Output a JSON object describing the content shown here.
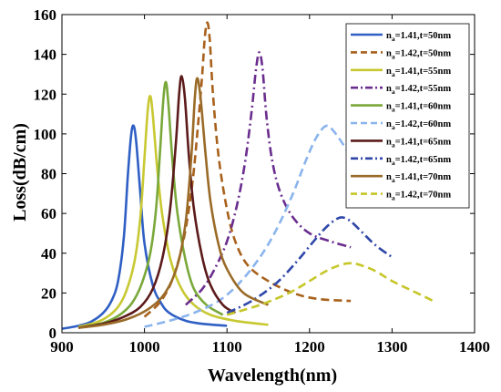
{
  "chart_data": {
    "type": "line",
    "title": "",
    "xlabel": "Wavelength(nm)",
    "ylabel": "Loss(dB/cm)",
    "xlim": [
      900,
      1400
    ],
    "ylim": [
      0,
      160
    ],
    "xticks": [
      900,
      1000,
      1100,
      1200,
      1300,
      1400
    ],
    "yticks": [
      0,
      20,
      40,
      60,
      80,
      100,
      120,
      140,
      160
    ],
    "grid": false,
    "legend_position": "top-right",
    "series": [
      {
        "name": "n_a=1.41,t=50nm",
        "label_main": "n",
        "label_sub": "a",
        "label_rest": "=1.41,t=50nm",
        "color": "#2f5fc4",
        "dash": "solid",
        "x": [
          900,
          920,
          935,
          950,
          960,
          968,
          975,
          980,
          984,
          987,
          990,
          995,
          1000,
          1010,
          1020,
          1030,
          1050,
          1070,
          1100
        ],
        "y": [
          2,
          3.5,
          5.5,
          10,
          16,
          26,
          48,
          80,
          100,
          104,
          96,
          70,
          45,
          24,
          15,
          10,
          6,
          4.5,
          3.5
        ]
      },
      {
        "name": "n_a=1.42,t=50nm",
        "label_main": "n",
        "label_sub": "a",
        "label_rest": "=1.42,t=50nm",
        "color": "#a8611c",
        "dash": "dash",
        "x": [
          1000,
          1020,
          1035,
          1048,
          1058,
          1065,
          1070,
          1073,
          1076,
          1079,
          1083,
          1090,
          1100,
          1110,
          1125,
          1150,
          1180,
          1210,
          1250
        ],
        "y": [
          8,
          16,
          28,
          48,
          75,
          105,
          130,
          148,
          156,
          148,
          120,
          88,
          62,
          46,
          34,
          26,
          20,
          17,
          16
        ]
      },
      {
        "name": "n_a=1.41,t=55nm",
        "label_main": "n",
        "label_sub": "a",
        "label_rest": "=1.41,t=55nm",
        "color": "#c8c832",
        "dash": "solid",
        "x": [
          920,
          940,
          955,
          968,
          978,
          988,
          995,
          1000,
          1004,
          1007,
          1010,
          1016,
          1022,
          1032,
          1045,
          1060,
          1080,
          1110,
          1150
        ],
        "y": [
          3,
          5,
          8,
          13,
          21,
          36,
          58,
          88,
          112,
          119,
          110,
          80,
          58,
          36,
          22,
          14,
          9,
          6,
          4
        ]
      },
      {
        "name": "n_a=1.42,t=55nm",
        "label_main": "n",
        "label_sub": "a",
        "label_rest": "=1.42,t=55nm",
        "color": "#6a2d8e",
        "dash": "dashdot",
        "x": [
          1050,
          1070,
          1085,
          1100,
          1112,
          1122,
          1130,
          1135,
          1139,
          1143,
          1148,
          1155,
          1165,
          1180,
          1200,
          1225,
          1250
        ],
        "y": [
          14,
          22,
          32,
          46,
          64,
          86,
          112,
          132,
          141,
          133,
          108,
          86,
          70,
          58,
          50,
          46,
          43
        ]
      },
      {
        "name": "n_a=1.41,t=60nm",
        "label_main": "n",
        "label_sub": "a",
        "label_rest": "=1.41,t=60nm",
        "color": "#7aa83a",
        "dash": "solid",
        "x": [
          920,
          950,
          970,
          985,
          997,
          1007,
          1014,
          1019,
          1023,
          1026,
          1029,
          1034,
          1040,
          1050,
          1060,
          1075,
          1095
        ],
        "y": [
          2.5,
          5,
          9,
          15,
          25,
          40,
          62,
          92,
          118,
          126,
          115,
          86,
          60,
          36,
          22,
          14,
          9
        ]
      },
      {
        "name": "n_a=1.42,t=60nm",
        "label_main": "n",
        "label_sub": "a",
        "label_rest": "=1.42,t=60nm",
        "color": "#8ab4ec",
        "dash": "dash",
        "x": [
          1000,
          1030,
          1060,
          1090,
          1115,
          1140,
          1160,
          1180,
          1195,
          1208,
          1220,
          1230,
          1245,
          1260,
          1270
        ],
        "y": [
          3,
          6,
          10,
          16,
          25,
          38,
          52,
          70,
          86,
          98,
          104,
          101,
          92,
          82,
          77
        ]
      },
      {
        "name": "n_a=1.41,t=65nm",
        "label_main": "n",
        "label_sub": "a",
        "label_rest": "=1.41,t=65nm",
        "color": "#5c1a1a",
        "dash": "solid",
        "x": [
          920,
          950,
          975,
          995,
          1010,
          1022,
          1031,
          1038,
          1042,
          1045,
          1049,
          1054,
          1060,
          1070,
          1080,
          1095,
          1110
        ],
        "y": [
          2.5,
          4.5,
          8,
          13,
          22,
          38,
          62,
          95,
          120,
          129,
          118,
          88,
          62,
          38,
          24,
          14,
          10
        ]
      },
      {
        "name": "n_a=1.42,t=65nm",
        "label_main": "n",
        "label_sub": "a",
        "label_rest": "=1.42,t=65nm",
        "color": "#2e47a8",
        "dash": "dashdot",
        "x": [
          1100,
          1130,
          1160,
          1185,
          1205,
          1220,
          1232,
          1240,
          1250,
          1265,
          1280,
          1300
        ],
        "y": [
          10,
          16,
          25,
          36,
          46,
          53,
          57,
          58,
          56,
          50,
          44,
          38
        ]
      },
      {
        "name": "n_a=1.41,t=70nm",
        "label_main": "n",
        "label_sub": "a",
        "label_rest": "=1.41,t=70nm",
        "color": "#9a6b28",
        "dash": "solid",
        "x": [
          920,
          950,
          980,
          1005,
          1025,
          1040,
          1050,
          1057,
          1061,
          1064,
          1068,
          1074,
          1080,
          1090,
          1100,
          1120,
          1150
        ],
        "y": [
          2.5,
          4,
          7,
          12,
          20,
          34,
          56,
          90,
          118,
          128,
          118,
          90,
          66,
          44,
          32,
          20,
          14
        ]
      },
      {
        "name": "n_a=1.42,t=70nm",
        "label_main": "n",
        "label_sub": "a",
        "label_rest": "=1.42,t=70nm",
        "color": "#c6c629",
        "dash": "dash",
        "x": [
          1100,
          1140,
          1175,
          1200,
          1220,
          1237,
          1250,
          1262,
          1280,
          1300,
          1325,
          1350
        ],
        "y": [
          9,
          14,
          20,
          26,
          31,
          34,
          35,
          34,
          31,
          26,
          21,
          16
        ]
      }
    ]
  }
}
